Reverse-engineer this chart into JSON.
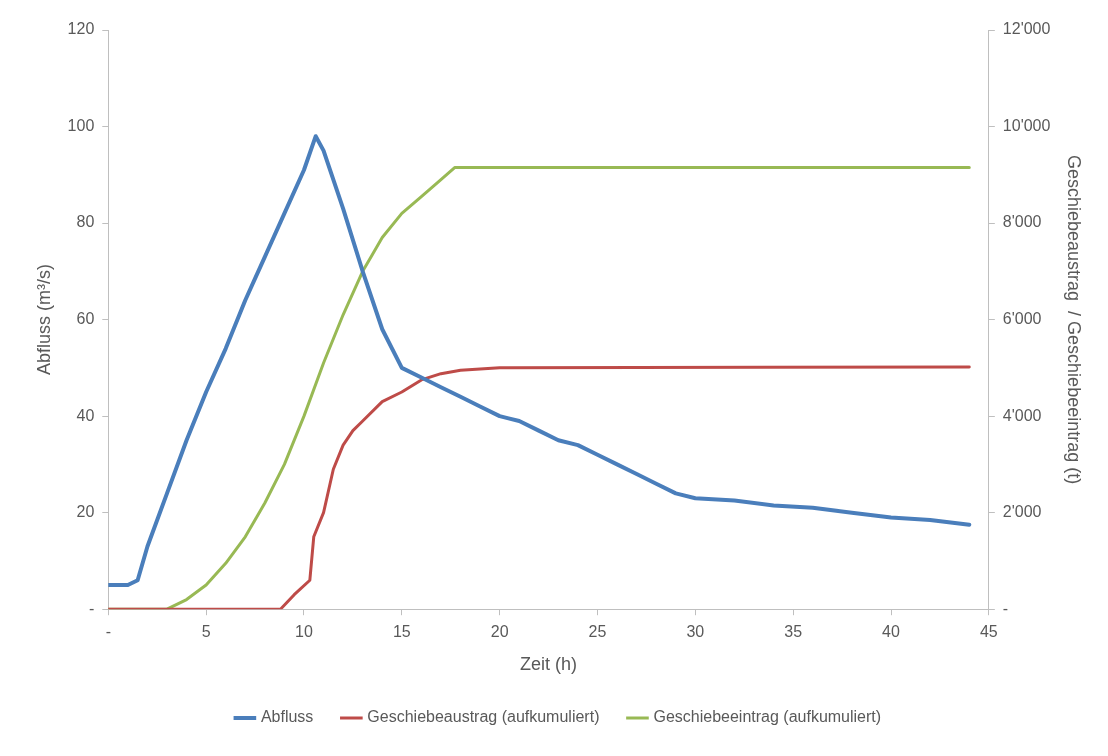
{
  "chart_data": {
    "type": "line",
    "xlabel": "Zeit (h)",
    "ylabel": "Abfluss (m³/s)",
    "y2label": "Geschiebeaustrag  / Geschiebeeintrag (t)",
    "xlim": [
      0,
      45
    ],
    "xticks": [
      {
        "value": 0,
        "label": "-"
      },
      5,
      10,
      15,
      20,
      25,
      30,
      35,
      40,
      45
    ],
    "ylim": [
      0,
      120
    ],
    "yticks": [
      {
        "value": 0,
        "label": "-"
      },
      20,
      40,
      60,
      80,
      100,
      120
    ],
    "y2lim": [
      0,
      12000
    ],
    "y2ticks": [
      {
        "value": 0,
        "label": "-"
      },
      {
        "value": 2000,
        "label": "2'000"
      },
      {
        "value": 4000,
        "label": "4'000"
      },
      {
        "value": 6000,
        "label": "6'000"
      },
      {
        "value": 8000,
        "label": "8'000"
      },
      {
        "value": 10000,
        "label": "10'000"
      },
      {
        "value": 12000,
        "label": "12'000"
      }
    ],
    "grid": false,
    "legend": "bottom",
    "marker": "none",
    "line_style": "solid",
    "series": [
      {
        "name": "Abfluss",
        "color": "#4a7ebb",
        "x": [
          0,
          0.5,
          1,
          1.5,
          2,
          3,
          4,
          5,
          6,
          7,
          8,
          9,
          10,
          10.6,
          11,
          12,
          13,
          14,
          15,
          16,
          17,
          18,
          19,
          20,
          21,
          22,
          23,
          24,
          25,
          26,
          27,
          28,
          29,
          30,
          32,
          34,
          36,
          38,
          40,
          42,
          44
        ],
        "values": [
          5,
          5,
          5,
          6,
          13,
          24,
          35,
          45,
          54,
          64,
          73,
          82,
          91,
          98,
          95,
          83,
          70,
          58,
          50,
          48,
          46,
          44,
          42,
          40,
          39,
          37,
          35,
          34,
          32,
          30,
          28,
          26,
          24,
          23,
          22.5,
          21.5,
          21,
          20,
          19,
          18.5,
          17.5
        ]
      },
      {
        "name": "Geschiebeaustrag (aufkumuliert)",
        "color": "#be4b48",
        "axis": "y2",
        "x": [
          0,
          8.8,
          9.5,
          10.3,
          10.5,
          11,
          11.5,
          12,
          12.5,
          13,
          14,
          15,
          16,
          17,
          18,
          20,
          44
        ],
        "values": [
          0,
          0,
          300,
          600,
          1500,
          2000,
          2900,
          3400,
          3700,
          3900,
          4300,
          4500,
          4750,
          4880,
          4950,
          5000,
          5020
        ]
      },
      {
        "name": "Geschiebeeintrag (aufkumuliert)",
        "color": "#98b954",
        "axis": "y2",
        "x": [
          0,
          3,
          4,
          5,
          6,
          7,
          8,
          9,
          10,
          11,
          12,
          13,
          14,
          15,
          16,
          17,
          17.7,
          44
        ],
        "values": [
          0,
          0,
          200,
          500,
          950,
          1500,
          2200,
          3000,
          4000,
          5100,
          6100,
          7000,
          7700,
          8200,
          8550,
          8900,
          9150,
          9150
        ]
      }
    ]
  }
}
